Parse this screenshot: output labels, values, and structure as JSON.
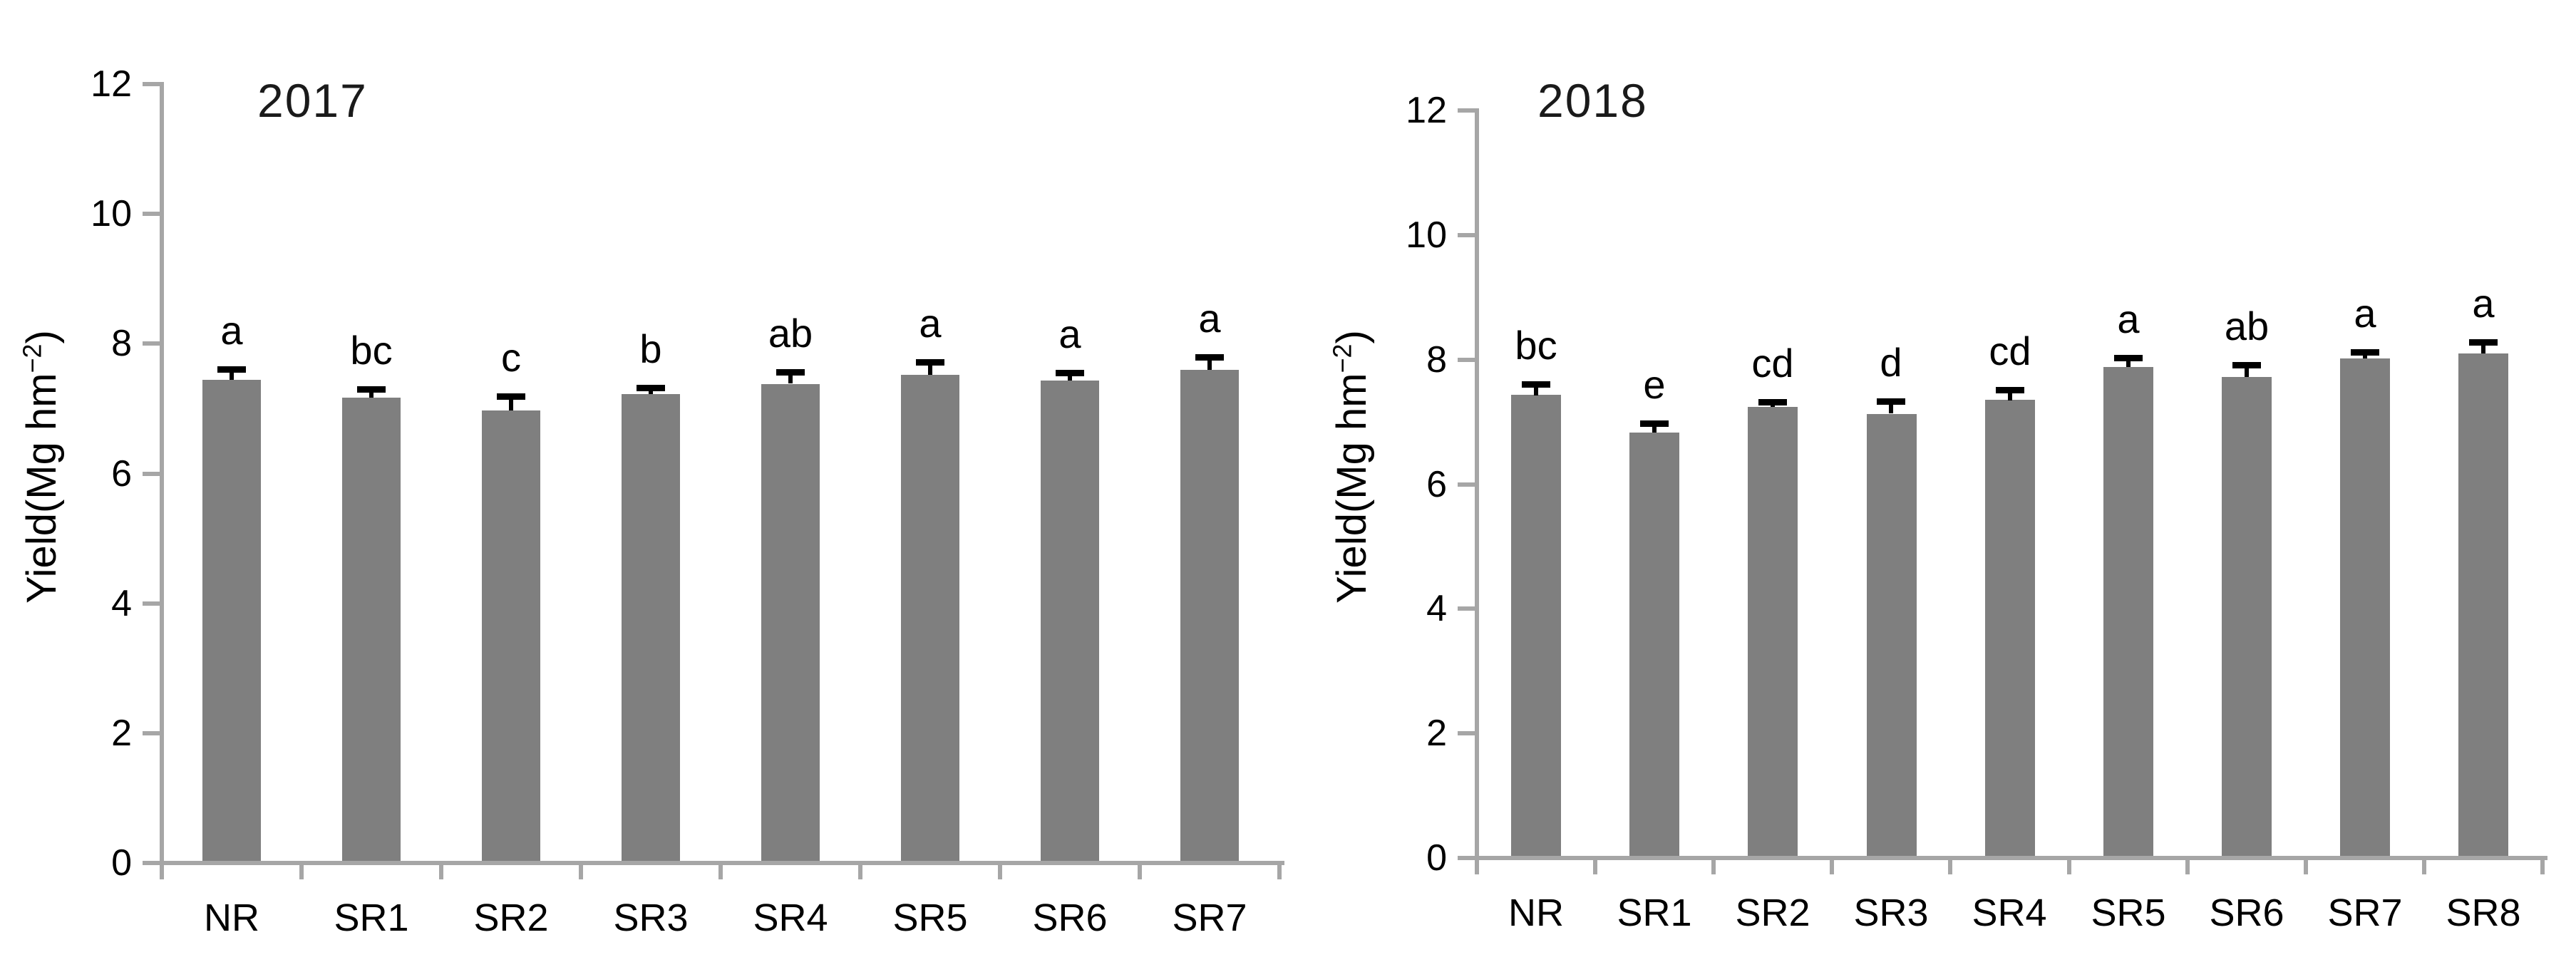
{
  "figure": {
    "background": "#ffffff",
    "grid": false,
    "legend": false
  },
  "colors": {
    "bar": "#7f7f7f",
    "axis": "#a6a6a6",
    "error": "#000000",
    "text": "#000000"
  },
  "chart_data": [
    {
      "type": "bar",
      "title": "2017",
      "ylabel": "Yield(Mg hm−2)",
      "ylabel_parts": {
        "prefix": "Yield(Mg hm",
        "sup": "−2",
        "suffix": ")"
      },
      "xlabel": "",
      "categories": [
        "NR",
        "SR1",
        "SR2",
        "SR3",
        "SR4",
        "SR5",
        "SR6",
        "SR7"
      ],
      "values": [
        7.44,
        7.17,
        6.97,
        7.22,
        7.38,
        7.52,
        7.43,
        7.6
      ],
      "errors": [
        0.17,
        0.13,
        0.22,
        0.1,
        0.18,
        0.2,
        0.12,
        0.2
      ],
      "letters": [
        "a",
        "bc",
        "c",
        "b",
        "ab",
        "a",
        "a",
        "a"
      ],
      "yticks": [
        0,
        2,
        4,
        6,
        8,
        10,
        12
      ],
      "ylim": [
        0,
        12
      ]
    },
    {
      "type": "bar",
      "title": "2018",
      "ylabel": "Yield(Mg hm−2)",
      "ylabel_parts": {
        "prefix": "Yield(Mg hm",
        "sup": "−2",
        "suffix": ")"
      },
      "xlabel": "",
      "categories": [
        "NR",
        "SR1",
        "SR2",
        "SR3",
        "SR4",
        "SR5",
        "SR6",
        "SR7",
        "SR8"
      ],
      "values": [
        7.43,
        6.83,
        7.24,
        7.13,
        7.35,
        7.88,
        7.72,
        8.02,
        8.1
      ],
      "errors": [
        0.18,
        0.15,
        0.08,
        0.2,
        0.17,
        0.15,
        0.2,
        0.1,
        0.18
      ],
      "letters": [
        "bc",
        "e",
        "cd",
        "d",
        "cd",
        "a",
        "ab",
        "a",
        "a"
      ],
      "yticks": [
        0,
        2,
        4,
        6,
        8,
        10,
        12
      ],
      "ylim": [
        0,
        12
      ]
    }
  ]
}
